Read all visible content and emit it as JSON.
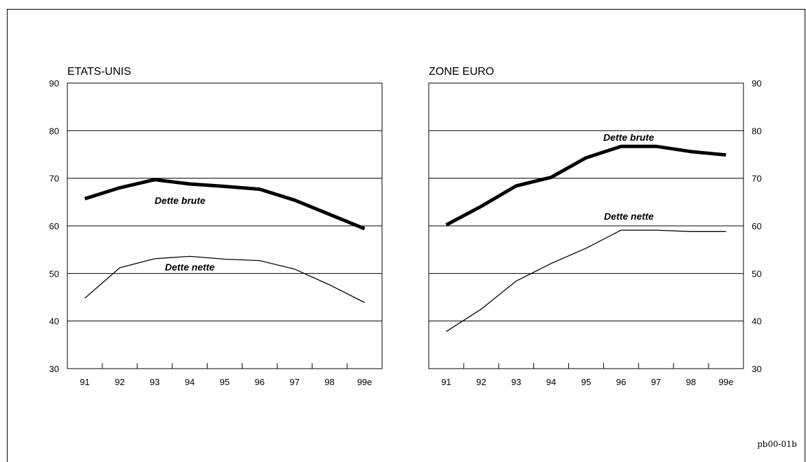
{
  "chart_code": "pb00-01b",
  "chart_data": [
    {
      "type": "line",
      "title": "ETATS-UNIS",
      "categories": [
        "91",
        "92",
        "93",
        "94",
        "95",
        "96",
        "97",
        "98",
        "99e"
      ],
      "ylim": [
        30,
        90
      ],
      "yticks": [
        "90",
        "80",
        "70",
        "60",
        "50",
        "40",
        "30"
      ],
      "y_axis_side": "left",
      "grid": true,
      "series": [
        {
          "name": "Dette brute",
          "values": [
            65.7,
            68.0,
            69.7,
            68.8,
            68.3,
            67.7,
            65.4,
            62.4,
            59.4
          ],
          "weight": "thick"
        },
        {
          "name": "Dette nette",
          "values": [
            44.8,
            51.2,
            53.1,
            53.6,
            53.0,
            52.7,
            50.9,
            47.6,
            43.9
          ],
          "weight": "thin"
        }
      ]
    },
    {
      "type": "line",
      "title": "ZONE EURO",
      "categories": [
        "91",
        "92",
        "93",
        "94",
        "95",
        "96",
        "97",
        "98",
        "99e"
      ],
      "ylim": [
        30,
        90
      ],
      "yticks": [
        "90",
        "80",
        "70",
        "60",
        "50",
        "40",
        "30"
      ],
      "y_axis_side": "right",
      "grid": true,
      "series": [
        {
          "name": "Dette brute",
          "values": [
            60.2,
            64.1,
            68.4,
            70.2,
            74.3,
            76.7,
            76.7,
            75.6,
            74.9
          ],
          "weight": "thick"
        },
        {
          "name": "Dette nette",
          "values": [
            37.8,
            42.5,
            48.4,
            52.1,
            55.3,
            59.1,
            59.1,
            58.8,
            58.8
          ],
          "weight": "thin"
        }
      ]
    }
  ]
}
